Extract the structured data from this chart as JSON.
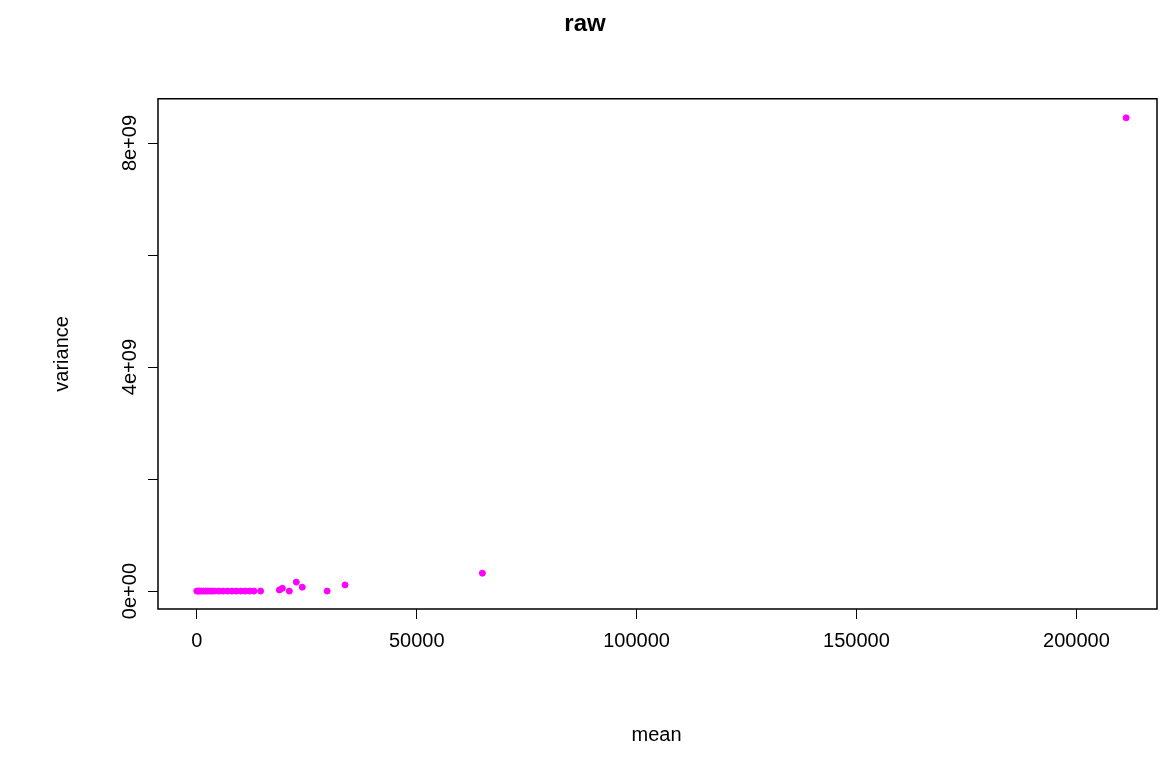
{
  "chart_data": {
    "type": "scatter",
    "title": "raw",
    "xlabel": "mean",
    "ylabel": "variance",
    "xlim": [
      -8824,
      217873
    ],
    "ylim": [
      -320000000,
      8790000000
    ],
    "xticks": [
      0,
      50000,
      100000,
      150000,
      200000
    ],
    "yticks": [
      {
        "value": 0,
        "label": "0e+00"
      },
      {
        "value": 2000000000,
        "label": null
      },
      {
        "value": 4000000000,
        "label": "4e+09"
      },
      {
        "value": 6000000000,
        "label": null
      },
      {
        "value": 8000000000,
        "label": "8e+09"
      }
    ],
    "grid": false,
    "legend": false,
    "marker": "circle",
    "series": [
      {
        "color": "#ff00ff",
        "x": [
          0,
          300,
          600,
          1000,
          1500,
          2000,
          2500,
          3000,
          3500,
          4000,
          5000,
          6000,
          7000,
          8000,
          9000,
          10000,
          11000,
          12000,
          13000,
          14500,
          18778,
          19457,
          21041,
          22624,
          23982,
          29638,
          33710,
          64932,
          211312
        ],
        "values": [
          0,
          0,
          0,
          0,
          0,
          0,
          0,
          0,
          0,
          0,
          0,
          0,
          0,
          0,
          0,
          0,
          0,
          0,
          0,
          0,
          20000000,
          50000000,
          0,
          160000000,
          70000000,
          0,
          110000000,
          320000000,
          8450000000
        ]
      }
    ]
  }
}
